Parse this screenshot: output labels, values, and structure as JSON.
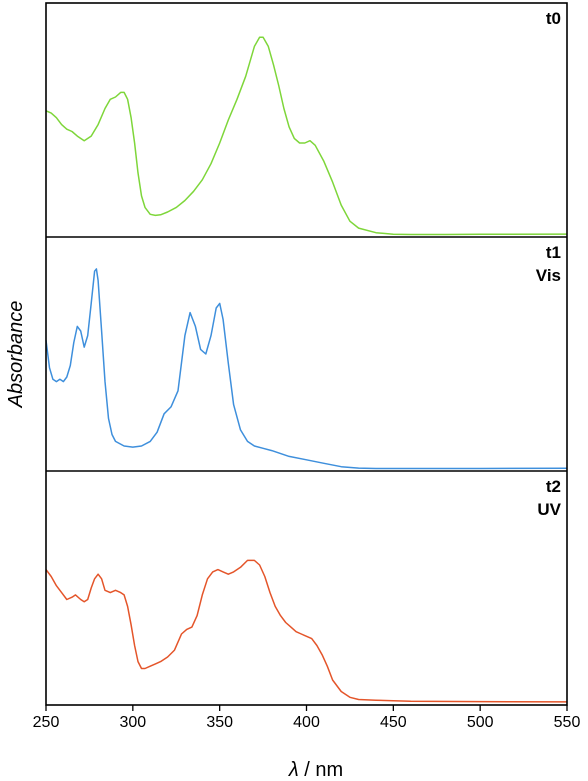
{
  "chart_data": {
    "type": "line",
    "xlabel_symbol": "λ",
    "xlabel_unit": " / nm",
    "ylabel": "Absorbance",
    "xlim": [
      250,
      550
    ],
    "xticks": [
      250,
      300,
      350,
      400,
      450,
      500,
      550
    ],
    "grid": false,
    "legend": "none",
    "panels": [
      {
        "labels": [
          "t0"
        ],
        "color": "#7ed63a",
        "ylim": [
          0,
          1
        ],
        "x": [
          250,
          253,
          256,
          259,
          262,
          265,
          268,
          272,
          276,
          280,
          284,
          287,
          290,
          293,
          295,
          297,
          299,
          301,
          303,
          305,
          307,
          310,
          313,
          316,
          320,
          325,
          330,
          335,
          340,
          345,
          350,
          355,
          360,
          365,
          370,
          373,
          375,
          378,
          381,
          384,
          387,
          390,
          393,
          396,
          399,
          402,
          405,
          410,
          415,
          420,
          425,
          430,
          440,
          450,
          460,
          480,
          500,
          550
        ],
        "y": [
          0.54,
          0.53,
          0.51,
          0.48,
          0.46,
          0.45,
          0.43,
          0.41,
          0.43,
          0.48,
          0.55,
          0.59,
          0.6,
          0.62,
          0.62,
          0.59,
          0.51,
          0.4,
          0.27,
          0.17,
          0.12,
          0.09,
          0.085,
          0.088,
          0.1,
          0.12,
          0.15,
          0.19,
          0.24,
          0.31,
          0.4,
          0.5,
          0.59,
          0.69,
          0.82,
          0.86,
          0.86,
          0.82,
          0.74,
          0.65,
          0.55,
          0.47,
          0.42,
          0.4,
          0.4,
          0.41,
          0.39,
          0.32,
          0.23,
          0.13,
          0.06,
          0.03,
          0.01,
          0.003,
          0.002,
          0.002,
          0.003,
          0.004
        ]
      },
      {
        "labels": [
          "t1",
          "Vis"
        ],
        "color": "#3e8fdc",
        "ylim": [
          0,
          1
        ],
        "x": [
          250,
          252,
          254,
          256,
          258,
          260,
          262,
          264,
          266,
          268,
          270,
          272,
          274,
          276,
          278,
          279,
          280,
          282,
          284,
          286,
          288,
          290,
          295,
          300,
          305,
          310,
          314,
          318,
          322,
          326,
          330,
          333,
          336,
          339,
          342,
          345,
          348,
          350,
          352,
          355,
          358,
          362,
          366,
          370,
          375,
          380,
          390,
          400,
          410,
          420,
          430,
          440,
          460,
          500,
          550
        ],
        "y": [
          0.56,
          0.44,
          0.39,
          0.38,
          0.39,
          0.38,
          0.4,
          0.45,
          0.55,
          0.62,
          0.6,
          0.53,
          0.58,
          0.72,
          0.86,
          0.87,
          0.82,
          0.6,
          0.38,
          0.22,
          0.15,
          0.12,
          0.1,
          0.095,
          0.1,
          0.12,
          0.16,
          0.24,
          0.27,
          0.34,
          0.58,
          0.68,
          0.62,
          0.52,
          0.5,
          0.58,
          0.7,
          0.72,
          0.65,
          0.46,
          0.28,
          0.17,
          0.12,
          0.1,
          0.09,
          0.08,
          0.055,
          0.04,
          0.025,
          0.01,
          0.004,
          0.002,
          0.002,
          0.002,
          0.003
        ]
      },
      {
        "labels": [
          "t2",
          "UV"
        ],
        "color": "#e4552a",
        "ylim": [
          0,
          1
        ],
        "x": [
          250,
          253,
          256,
          259,
          262,
          265,
          267,
          270,
          272,
          274,
          276,
          278,
          280,
          282,
          284,
          287,
          290,
          293,
          295,
          297,
          299,
          301,
          303,
          305,
          307,
          310,
          313,
          316,
          320,
          324,
          328,
          331,
          334,
          337,
          340,
          343,
          346,
          349,
          352,
          355,
          358,
          362,
          366,
          370,
          373,
          376,
          379,
          382,
          385,
          388,
          391,
          394,
          397,
          400,
          403,
          406,
          409,
          412,
          415,
          420,
          425,
          430,
          440,
          450,
          460,
          500,
          550
        ],
        "y": [
          0.58,
          0.55,
          0.51,
          0.48,
          0.45,
          0.46,
          0.47,
          0.45,
          0.44,
          0.45,
          0.5,
          0.54,
          0.56,
          0.54,
          0.49,
          0.48,
          0.49,
          0.48,
          0.47,
          0.42,
          0.34,
          0.25,
          0.18,
          0.15,
          0.15,
          0.16,
          0.17,
          0.18,
          0.2,
          0.23,
          0.3,
          0.32,
          0.33,
          0.38,
          0.47,
          0.54,
          0.57,
          0.58,
          0.57,
          0.56,
          0.57,
          0.59,
          0.62,
          0.62,
          0.6,
          0.55,
          0.48,
          0.42,
          0.38,
          0.35,
          0.33,
          0.31,
          0.3,
          0.29,
          0.28,
          0.25,
          0.21,
          0.16,
          0.1,
          0.05,
          0.025,
          0.015,
          0.012,
          0.01,
          0.008,
          0.006,
          0.005
        ]
      }
    ]
  }
}
